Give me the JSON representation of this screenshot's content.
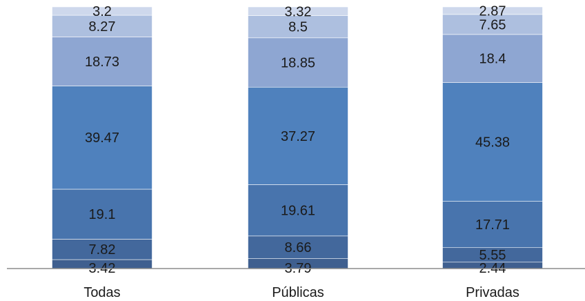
{
  "chart_data": {
    "type": "bar",
    "stacked": true,
    "categories": [
      "Todas",
      "Públicas",
      "Privadas"
    ],
    "series": [
      {
        "values": [
          3.42,
          3.79,
          2.44
        ],
        "color": "#3f5f8f"
      },
      {
        "values": [
          7.82,
          8.66,
          5.55
        ],
        "color": "#43689c"
      },
      {
        "values": [
          19.1,
          19.61,
          17.71
        ],
        "color": "#4874ad"
      },
      {
        "values": [
          39.47,
          37.27,
          45.38
        ],
        "color": "#4f81bd"
      },
      {
        "values": [
          18.73,
          18.85,
          18.4
        ],
        "color": "#8ea6d2"
      },
      {
        "values": [
          8.27,
          8.5,
          7.65
        ],
        "color": "#adbfdf"
      },
      {
        "values": [
          3.2,
          3.32,
          2.87
        ],
        "color": "#ced8ec"
      }
    ],
    "ylim": [
      0,
      100
    ],
    "grid": false,
    "legend": "none"
  }
}
